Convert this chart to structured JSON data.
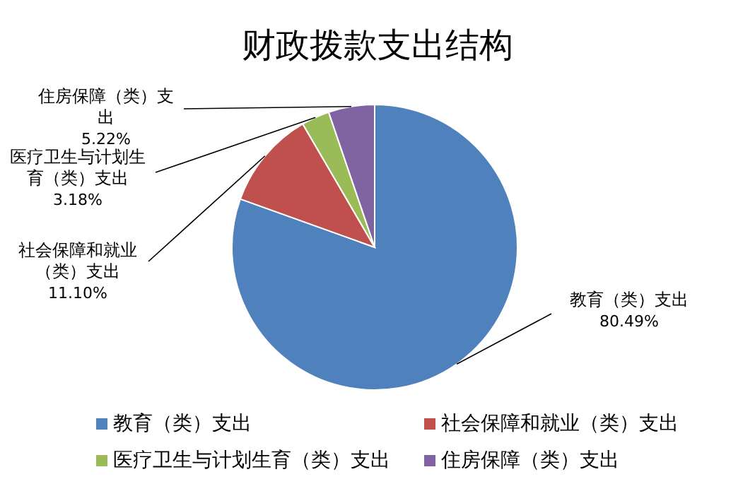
{
  "chart_data": {
    "type": "pie",
    "title": "财政拨款支出结构",
    "categories": [
      "教育（类）支出",
      "社会保障和就业（类）支出",
      "医疗卫生与计划生育（类）支出",
      "住房保障（类）支出"
    ],
    "values": [
      80.49,
      11.1,
      3.18,
      5.22
    ],
    "colors": [
      "#4f81bd",
      "#c0504d",
      "#9bbb59",
      "#8064a2"
    ],
    "value_labels": [
      "80.49%",
      "11.10%",
      "3.18%",
      "5.22%"
    ],
    "legend": "bottom"
  }
}
